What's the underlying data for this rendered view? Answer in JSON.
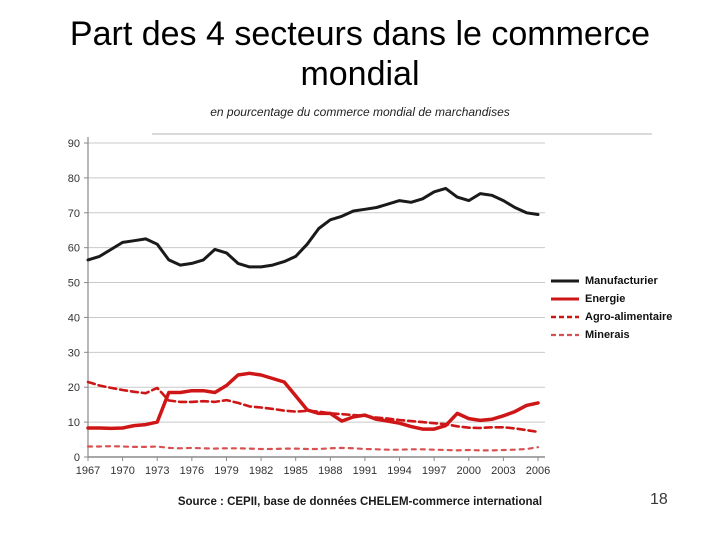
{
  "slide": {
    "title": "Part des 4 secteurs dans le commerce mondial",
    "page_number": "18"
  },
  "chart_data": {
    "type": "line",
    "title": "en pourcentage du commerce mondial de marchandises",
    "source": "Source : CEPII, base de données CHELEM-commerce international",
    "xlabel": "",
    "ylabel": "",
    "ylim": [
      0,
      90
    ],
    "grid": true,
    "legend_position": "right",
    "x_start": 1967,
    "x_end": 2006,
    "x_tick_labels": [
      "1967",
      "1970",
      "1973",
      "1976",
      "1979",
      "1982",
      "1985",
      "1988",
      "1991",
      "1994",
      "1997",
      "2000",
      "2003",
      "2006"
    ],
    "y_tick_labels": [
      "0",
      "10",
      "20",
      "30",
      "40",
      "50",
      "60",
      "70",
      "80",
      "90"
    ],
    "x": [
      1967,
      1968,
      1969,
      1970,
      1971,
      1972,
      1973,
      1974,
      1975,
      1976,
      1977,
      1978,
      1979,
      1980,
      1981,
      1982,
      1983,
      1984,
      1985,
      1986,
      1987,
      1988,
      1989,
      1990,
      1991,
      1992,
      1993,
      1994,
      1995,
      1996,
      1997,
      1998,
      1999,
      2000,
      2001,
      2002,
      2003,
      2004,
      2005,
      2006
    ],
    "series": [
      {
        "name": "Manufacturier",
        "color": "#1a1a1a",
        "style": "solid",
        "dash": "",
        "width": 3,
        "values": [
          56.5,
          57.5,
          59.5,
          61.5,
          62,
          62.5,
          61,
          56.5,
          55,
          55.5,
          56.5,
          59.5,
          58.5,
          55.5,
          54.5,
          54.5,
          55,
          56,
          57.5,
          61,
          65.5,
          68,
          69,
          70.5,
          71,
          71.5,
          72.5,
          73.5,
          73,
          74,
          76,
          77,
          74.5,
          73.5,
          75.5,
          75,
          73.5,
          71.5,
          70,
          69.5
        ]
      },
      {
        "name": "Energie",
        "color": "#cf1616",
        "style": "solid",
        "dash": "",
        "width": 3.5,
        "values": [
          8.3,
          8.3,
          8.2,
          8.3,
          9,
          9.3,
          10,
          18.5,
          18.5,
          19,
          19,
          18.5,
          20.5,
          23.5,
          24,
          23.5,
          22.5,
          21.5,
          17.5,
          13.5,
          12.5,
          12.5,
          10.3,
          11.5,
          12,
          10.8,
          10.3,
          9.7,
          8.7,
          8,
          8,
          9,
          12.5,
          11,
          10.5,
          10.8,
          11.8,
          13,
          14.8,
          15.5
        ]
      },
      {
        "name": "Agro-alimentaire",
        "color": "#cf1616",
        "style": "dashed",
        "dash": "7,4",
        "width": 2.6,
        "values": [
          21.5,
          20.5,
          19.8,
          19.2,
          18.7,
          18.3,
          19.8,
          16.2,
          15.8,
          15.8,
          16,
          15.8,
          16.3,
          15.5,
          14.5,
          14.2,
          13.8,
          13.3,
          13,
          13.2,
          13,
          12.5,
          12.3,
          12,
          11.8,
          11.3,
          11,
          10.6,
          10.3,
          10,
          9.7,
          9.4,
          8.8,
          8.4,
          8.3,
          8.5,
          8.5,
          8.2,
          7.7,
          7.2
        ]
      },
      {
        "name": "Minerais",
        "color": "#d95050",
        "style": "dashed",
        "dash": "4,5",
        "width": 2.2,
        "values": [
          3,
          3,
          3.1,
          3,
          2.9,
          2.9,
          3,
          2.6,
          2.5,
          2.6,
          2.5,
          2.4,
          2.5,
          2.5,
          2.4,
          2.3,
          2.3,
          2.4,
          2.4,
          2.3,
          2.3,
          2.5,
          2.6,
          2.5,
          2.3,
          2.2,
          2.1,
          2.1,
          2.2,
          2.2,
          2.1,
          2,
          1.9,
          2,
          1.9,
          1.9,
          2,
          2.1,
          2.3,
          2.8
        ]
      }
    ],
    "axis_color": "#8a8a8a",
    "grid_color": "#c9c9c9",
    "tick_label_color": "#333333"
  }
}
